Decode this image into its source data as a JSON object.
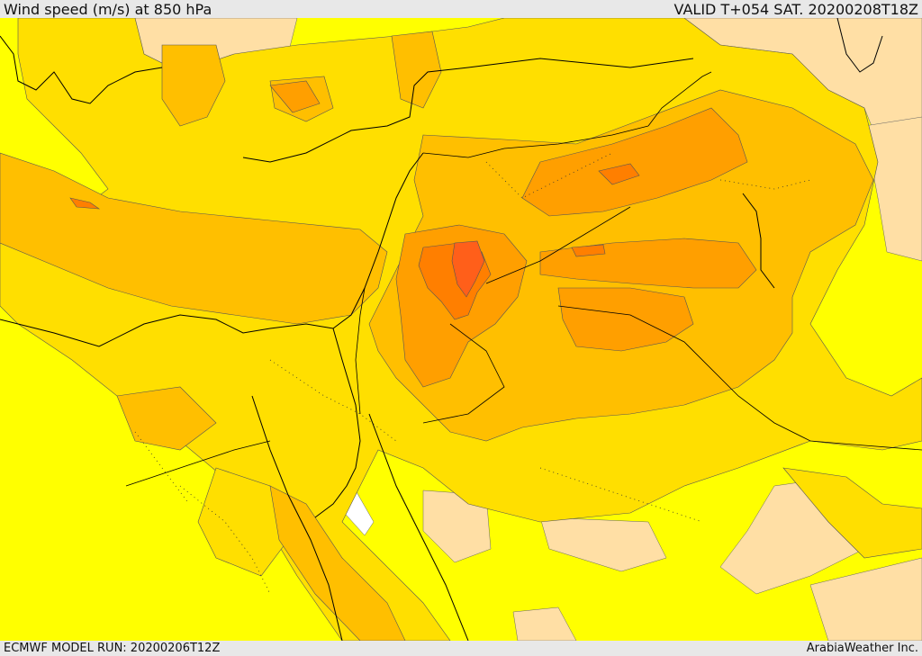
{
  "header": {
    "title": "Wind speed (m/s) at 850 hPa",
    "valid": "VALID T+054 SAT. 20200208T18Z"
  },
  "footer": {
    "model_run": "ECMWF MODEL RUN: 20200206T12Z",
    "credit": "ArabiaWeather Inc."
  },
  "colors": {
    "band_1": "#ffffff",
    "band_2": "#ffdfa5",
    "band_3": "#ffff00",
    "band_4": "#ffdf00",
    "band_5": "#ffbf00",
    "band_6": "#ff9f00",
    "band_7": "#ff7f00",
    "band_8": "#ff5f1a",
    "border": "#000000"
  }
}
